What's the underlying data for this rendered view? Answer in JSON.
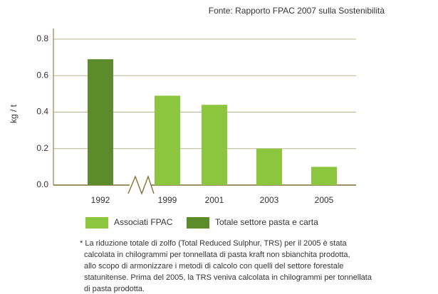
{
  "chart_data": {
    "type": "bar",
    "source": "Fonte: Rapporto FPAC 2007 sulla Sostenibilità",
    "ylabel": "kg / t",
    "categories": [
      "1992",
      "1999",
      "2001",
      "2003",
      "2005"
    ],
    "series": [
      {
        "name": "Associati FPAC",
        "color": "#8cc63e",
        "values": [
          null,
          0.49,
          0.44,
          0.2,
          0.1
        ]
      },
      {
        "name": "Totale settore pasta e carta",
        "color": "#5b8b2b",
        "values": [
          0.69,
          null,
          null,
          null,
          null
        ]
      }
    ],
    "ylim": [
      0,
      0.8
    ],
    "yticks": [
      {
        "value": 0,
        "label": "0.0"
      },
      0.2,
      0.4,
      0.6,
      0.8
    ],
    "grid": true,
    "footnote": [
      "* La riduzione totale di zolfo (Total Reduced Sulphur, TRS) per il 2005 è stata",
      "calcolata in chilogrammi per tonnellata di pasta kraft non sbianchita prodotta,",
      "allo scopo di armonizzare i metodi di calcolo con quelli del settore forestale",
      "statunitense. Prima del 2005, la TRS veniva calcolata in chilogrammi per tonnellata",
      "di pasta prodotta."
    ]
  }
}
